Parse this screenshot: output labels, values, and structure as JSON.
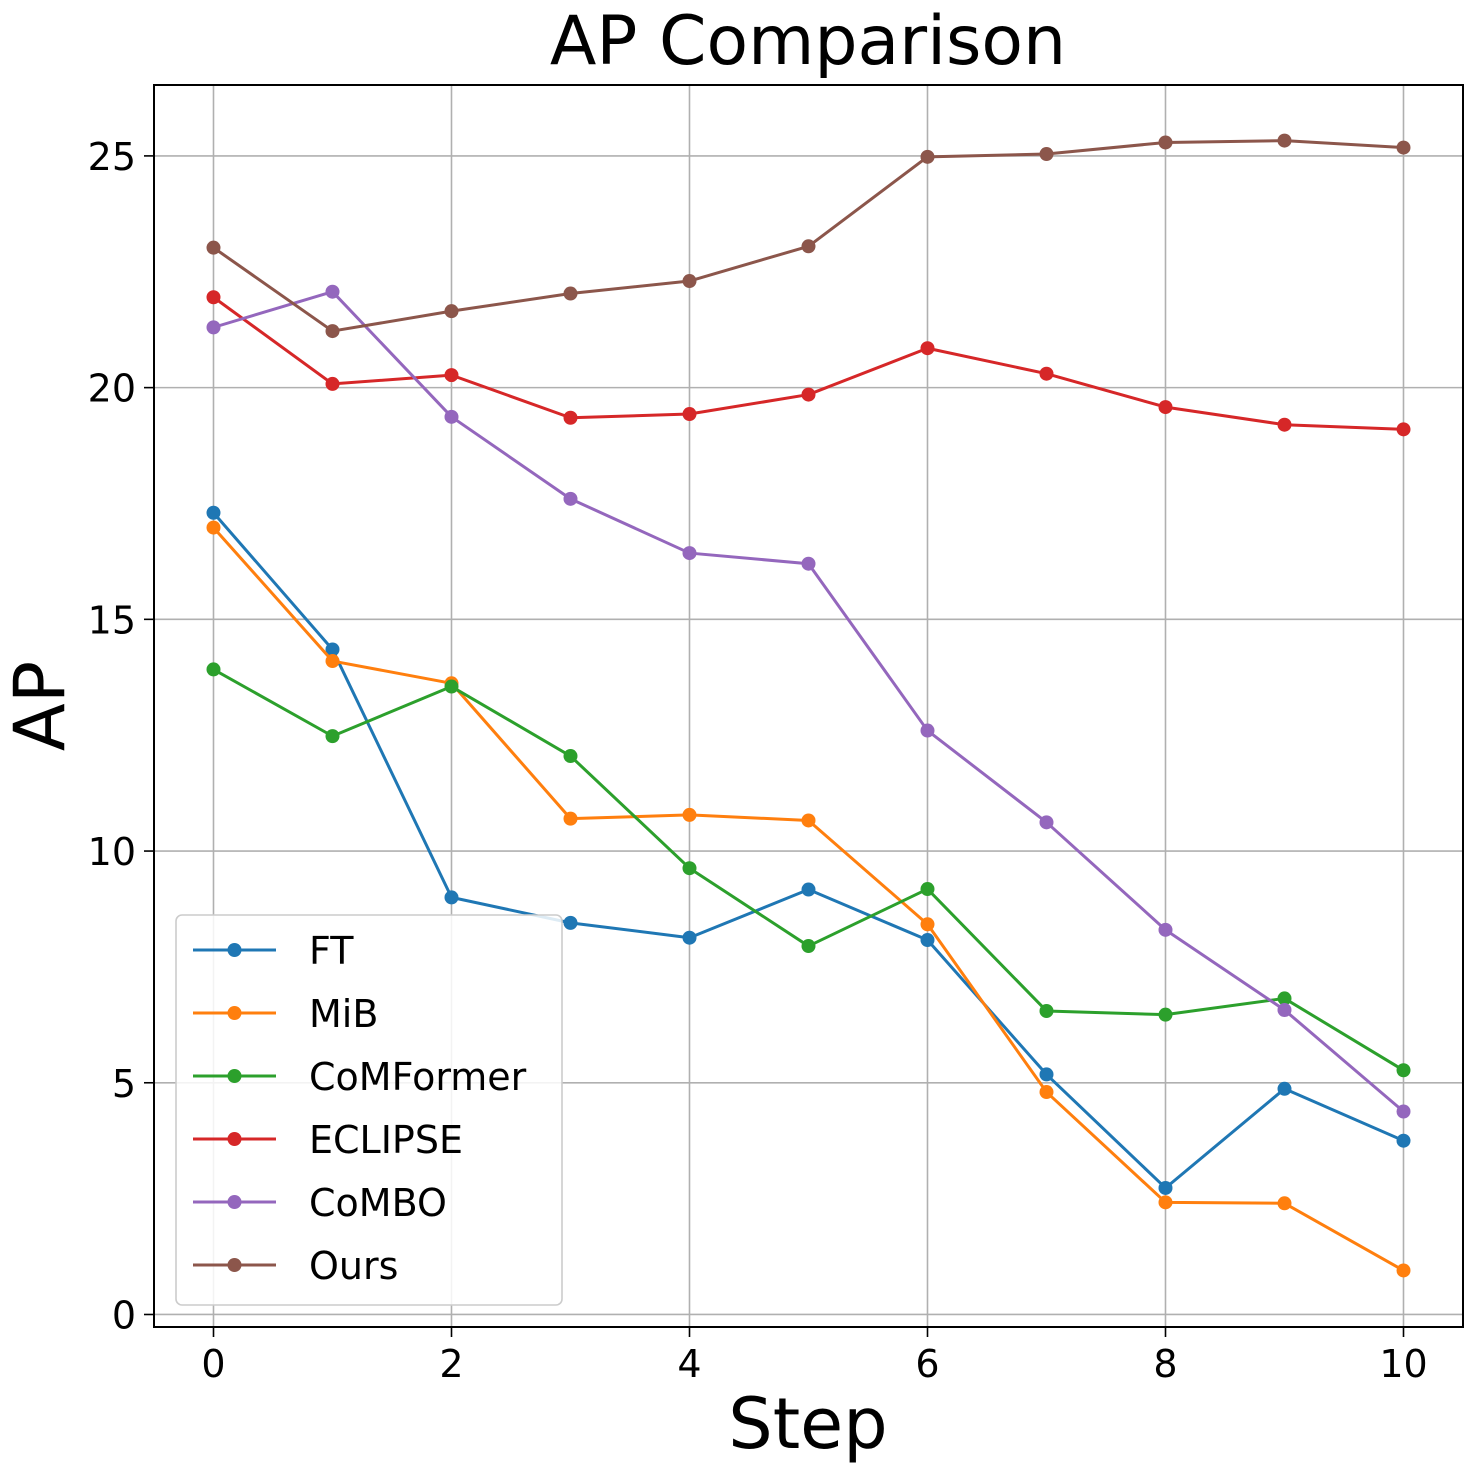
{
  "chart_data": {
    "type": "line",
    "title": "AP Comparison",
    "xlabel": "Step",
    "ylabel": "AP",
    "x": [
      0,
      1,
      2,
      3,
      4,
      5,
      6,
      7,
      8,
      9,
      10
    ],
    "xlim": [
      -0.5,
      10.5
    ],
    "ylim": [
      -0.27,
      26.53
    ],
    "xticks": [
      0,
      2,
      4,
      6,
      8,
      10
    ],
    "yticks": [
      0,
      5,
      10,
      15,
      20,
      25
    ],
    "grid": true,
    "legend_position": "lower-left",
    "series": [
      {
        "name": "FT",
        "color": "#1f77b4",
        "values": [
          17.3,
          14.35,
          9.0,
          8.45,
          8.13,
          9.17,
          8.08,
          5.18,
          2.73,
          4.87,
          3.75
        ]
      },
      {
        "name": "MiB",
        "color": "#ff7f0e",
        "values": [
          16.98,
          14.1,
          13.62,
          10.7,
          10.78,
          10.66,
          8.42,
          4.8,
          2.42,
          2.4,
          0.95
        ]
      },
      {
        "name": "CoMFormer",
        "color": "#2ca02c",
        "values": [
          13.92,
          12.48,
          13.55,
          12.05,
          9.63,
          7.95,
          9.18,
          6.55,
          6.47,
          6.82,
          5.27
        ]
      },
      {
        "name": "ECLIPSE",
        "color": "#d62728",
        "values": [
          21.95,
          20.08,
          20.27,
          19.35,
          19.43,
          19.85,
          20.85,
          20.3,
          19.58,
          19.2,
          19.1
        ]
      },
      {
        "name": "CoMBO",
        "color": "#9467bd",
        "values": [
          21.3,
          22.07,
          19.37,
          17.6,
          16.43,
          16.2,
          12.6,
          10.62,
          8.3,
          6.57,
          4.38
        ]
      },
      {
        "name": "Ours",
        "color": "#8c564b",
        "values": [
          23.02,
          21.22,
          21.65,
          22.03,
          22.3,
          23.05,
          24.98,
          25.04,
          25.29,
          25.33,
          25.18
        ]
      }
    ]
  }
}
